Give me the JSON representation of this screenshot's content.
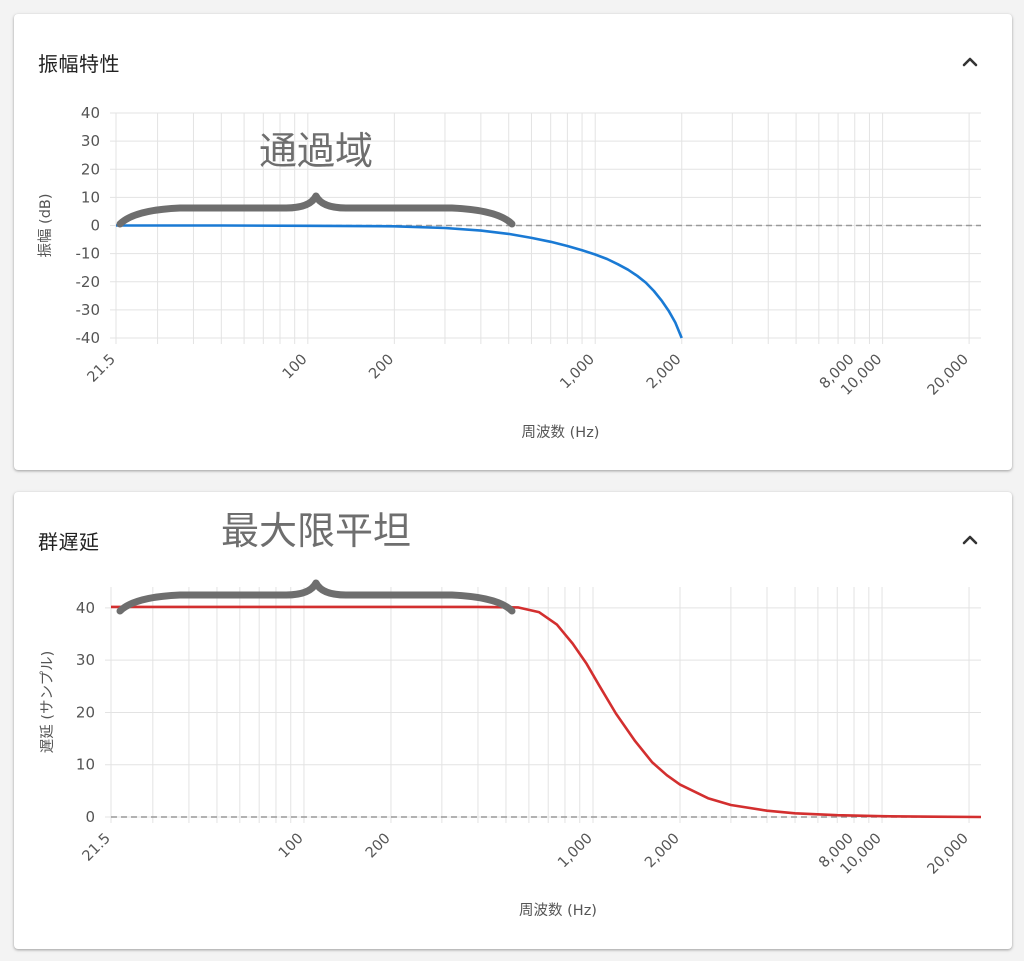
{
  "panels": [
    {
      "title": "振幅特性",
      "collapse_icon": "chevron-up-icon",
      "annotation": "通過域",
      "chart_data": {
        "type": "line",
        "x_scale": "log",
        "xlim": [
          21.5,
          22000
        ],
        "ylim": [
          -40,
          40
        ],
        "xlabel": "周波数 (Hz)",
        "ylabel": "振幅 (dB)",
        "y_ticks": [
          40,
          30,
          20,
          10,
          0,
          -10,
          -20,
          -30,
          -40
        ],
        "x_tick_labels": [
          {
            "x": 21.5,
            "label": "21.5"
          },
          {
            "x": 100,
            "label": "100"
          },
          {
            "x": 200,
            "label": "200"
          },
          {
            "x": 1000,
            "label": "1,000"
          },
          {
            "x": 2000,
            "label": "2,000"
          },
          {
            "x": 8000,
            "label": "8,000"
          },
          {
            "x": 10000,
            "label": "10,000"
          },
          {
            "x": 20000,
            "label": "20,000"
          }
        ],
        "grid": true,
        "reference_line": {
          "y": 0,
          "style": "dashed"
        },
        "series": [
          {
            "color": "#1a7ad4",
            "points": [
              [
                21.5,
                0
              ],
              [
                50,
                0
              ],
              [
                100,
                -0.1
              ],
              [
                200,
                -0.3
              ],
              [
                300,
                -0.9
              ],
              [
                400,
                -1.8
              ],
              [
                500,
                -3.0
              ],
              [
                600,
                -4.4
              ],
              [
                700,
                -5.8
              ],
              [
                800,
                -7.3
              ],
              [
                900,
                -8.8
              ],
              [
                1000,
                -10.3
              ],
              [
                1100,
                -11.9
              ],
              [
                1200,
                -13.8
              ],
              [
                1300,
                -15.7
              ],
              [
                1400,
                -17.9
              ],
              [
                1500,
                -20.3
              ],
              [
                1600,
                -23.3
              ],
              [
                1700,
                -26.6
              ],
              [
                1800,
                -30.3
              ],
              [
                1900,
                -34.5
              ],
              [
                2000,
                -40
              ]
            ]
          }
        ]
      }
    },
    {
      "title": "群遅延",
      "collapse_icon": "chevron-up-icon",
      "annotation": "最大限平坦",
      "chart_data": {
        "type": "line",
        "x_scale": "log",
        "xlim": [
          21.5,
          22000
        ],
        "ylim": [
          0,
          44
        ],
        "xlabel": "周波数 (Hz)",
        "ylabel": "遅延 (サンプル)",
        "y_ticks": [
          40,
          30,
          20,
          10,
          0
        ],
        "x_tick_labels": [
          {
            "x": 21.5,
            "label": "21.5"
          },
          {
            "x": 100,
            "label": "100"
          },
          {
            "x": 200,
            "label": "200"
          },
          {
            "x": 1000,
            "label": "1,000"
          },
          {
            "x": 2000,
            "label": "2,000"
          },
          {
            "x": 8000,
            "label": "8,000"
          },
          {
            "x": 10000,
            "label": "10,000"
          },
          {
            "x": 20000,
            "label": "20,000"
          }
        ],
        "grid": true,
        "reference_line": {
          "y": 0,
          "style": "dashed"
        },
        "series": [
          {
            "color": "#d32f2f",
            "points": [
              [
                21.5,
                40.2
              ],
              [
                100,
                40.2
              ],
              [
                200,
                40.2
              ],
              [
                400,
                40.2
              ],
              [
                550,
                40.1
              ],
              [
                650,
                39.2
              ],
              [
                750,
                36.8
              ],
              [
                850,
                33.2
              ],
              [
                950,
                29.3
              ],
              [
                1050,
                25.2
              ],
              [
                1200,
                19.8
              ],
              [
                1400,
                14.5
              ],
              [
                1600,
                10.5
              ],
              [
                1800,
                8.0
              ],
              [
                2000,
                6.2
              ],
              [
                2500,
                3.6
              ],
              [
                3000,
                2.3
              ],
              [
                4000,
                1.2
              ],
              [
                5000,
                0.7
              ],
              [
                7000,
                0.35
              ],
              [
                10000,
                0.15
              ],
              [
                15000,
                0.05
              ],
              [
                22000,
                0
              ]
            ]
          }
        ]
      }
    }
  ]
}
